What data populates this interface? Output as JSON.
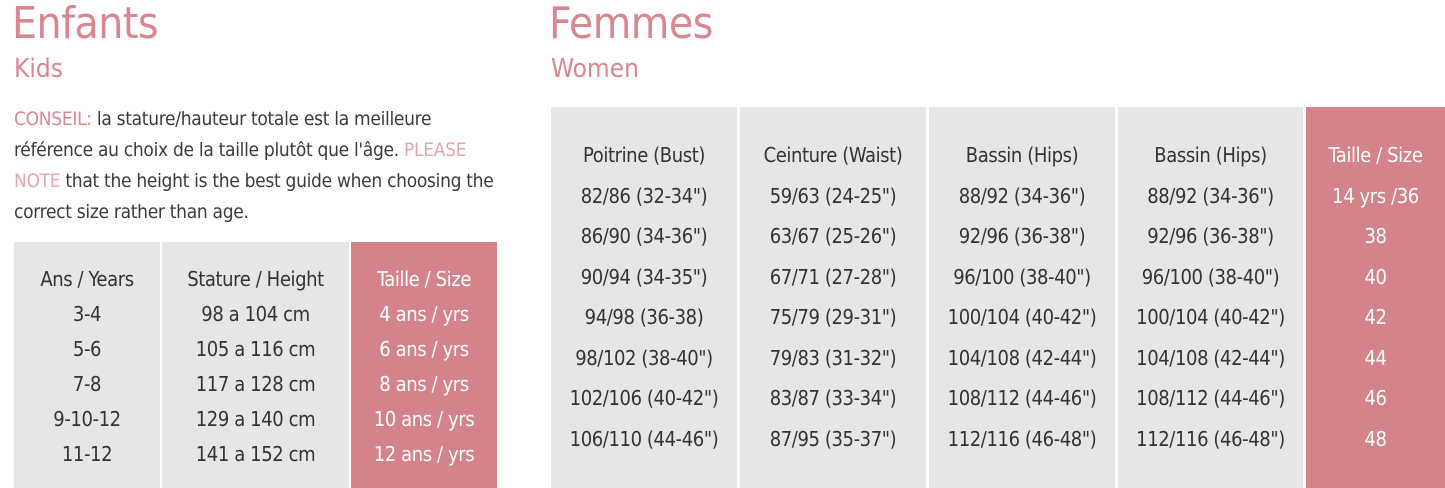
{
  "kids": {
    "title": "Enfants",
    "subtitle": "Kids",
    "note": {
      "conseil_label": "CONSEIL:",
      "conseil_text": " la stature/hauteur totale est la meilleure référence au choix de la taille plutôt que l'âge.",
      "please_label": "PLEASE NOTE",
      "please_text": " that the height is the best guide when choosing the correct size rather than age."
    },
    "columns": [
      {
        "header": "Ans / Years",
        "values": [
          "3-4",
          "5-6",
          "7-8",
          "9-10-12",
          "11-12"
        ]
      },
      {
        "header": "Stature / Height",
        "values": [
          "98 a 104 cm",
          "105 a 116 cm",
          "117 a 128 cm",
          "129 a 140 cm",
          "141 a 152 cm"
        ]
      },
      {
        "header": "Taille / Size",
        "values": [
          "4 ans / yrs",
          "6 ans / yrs",
          "8 ans / yrs",
          "10 ans / yrs",
          "12 ans / yrs"
        ]
      }
    ]
  },
  "women": {
    "title": "Femmes",
    "subtitle": "Women",
    "columns": [
      {
        "header": "Poitrine (Bust)",
        "values": [
          "82/86 (32-34\")",
          "86/90 (34-36\")",
          "90/94 (34-35\")",
          "94/98 (36-38)",
          "98/102 (38-40\")",
          "102/106 (40-42\")",
          "106/110 (44-46\")"
        ]
      },
      {
        "header": "Ceinture (Waist)",
        "values": [
          "59/63 (24-25\")",
          "63/67 (25-26\")",
          "67/71 (27-28\")",
          "75/79 (29-31\")",
          "79/83 (31-32\")",
          "83/87 (33-34\")",
          "87/95 (35-37\")"
        ]
      },
      {
        "header": "Bassin (Hips)",
        "values": [
          "88/92 (34-36\")",
          "92/96 (36-38\")",
          "96/100 (38-40\")",
          "100/104 (40-42\")",
          "104/108 (42-44\")",
          "108/112 (44-46\")",
          "112/116 (46-48\")"
        ]
      },
      {
        "header": "Bassin (Hips)",
        "values": [
          "88/92 (34-36\")",
          "92/96 (36-38\")",
          "96/100 (38-40\")",
          "100/104 (40-42\")",
          "104/108 (42-44\")",
          "108/112 (44-46\")",
          "112/116 (46-48\")"
        ]
      },
      {
        "header": "Taille / Size",
        "values": [
          "14 yrs /36",
          "38",
          "40",
          "42",
          "44",
          "46",
          "48"
        ]
      }
    ]
  },
  "colors": {
    "accent_pink": "#d4838a",
    "title_pink": "#d9878e",
    "cell_gray": "#e6e6e6"
  }
}
